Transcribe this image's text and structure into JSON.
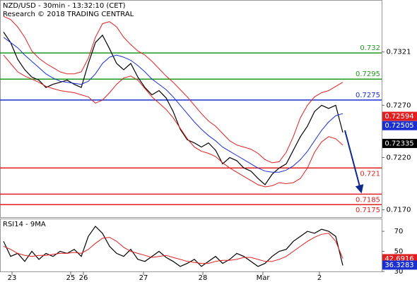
{
  "chart_data": [
    {
      "type": "line",
      "title": "NZD/USD - 30min - 13:32:10 (CET)",
      "subtitle": "Research © 2018 TRADING CENTRAL",
      "x": [
        0,
        1,
        2,
        3,
        4,
        5,
        6,
        7,
        8,
        9,
        10,
        11,
        12,
        13,
        14,
        15,
        16,
        17,
        18,
        19,
        20,
        21,
        22,
        23,
        24,
        25,
        26,
        27,
        28,
        29,
        30,
        31,
        32,
        33,
        34,
        35,
        36,
        37,
        38,
        39,
        40,
        41,
        42,
        43,
        44,
        45,
        46,
        47,
        48
      ],
      "xlim": [
        -0.5,
        53.5
      ],
      "ylim": [
        0.7163,
        0.737
      ],
      "yticks": [
        0.7321,
        {
          "value": 0.727,
          "label": "0.7270"
        },
        {
          "value": 0.722,
          "label": "0.7220"
        },
        {
          "value": 0.717,
          "label": "0.7170"
        }
      ],
      "series": [
        {
          "color": "#000000",
          "values": [
            0.734,
            0.733,
            0.7314,
            0.7304,
            0.7297,
            0.7294,
            0.7287,
            0.729,
            0.7292,
            0.7294,
            0.729,
            0.7287,
            0.731,
            0.733,
            0.7337,
            0.7324,
            0.731,
            0.7304,
            0.731,
            0.7297,
            0.7287,
            0.728,
            0.7284,
            0.7277,
            0.7264,
            0.7247,
            0.7237,
            0.7234,
            0.723,
            0.7234,
            0.7227,
            0.7214,
            0.722,
            0.7217,
            0.721,
            0.7207,
            0.72,
            0.7194,
            0.7204,
            0.721,
            0.7214,
            0.7227,
            0.724,
            0.725,
            0.7264,
            0.727,
            0.7267,
            0.727,
            0.7244
          ]
        },
        {
          "color": "#1a2fd0",
          "values": [
            0.7335,
            0.733,
            0.7325,
            0.7318,
            0.7312,
            0.7306,
            0.73,
            0.7296,
            0.7293,
            0.7292,
            0.7291,
            0.729,
            0.7293,
            0.73,
            0.731,
            0.7316,
            0.7318,
            0.7316,
            0.7313,
            0.7308,
            0.7302,
            0.7295,
            0.729,
            0.7285,
            0.7278,
            0.727,
            0.7262,
            0.7254,
            0.7247,
            0.7241,
            0.7236,
            0.723,
            0.7226,
            0.7222,
            0.7218,
            0.7214,
            0.721,
            0.7207,
            0.7206,
            0.7206,
            0.7208,
            0.7212,
            0.7218,
            0.7226,
            0.7236,
            0.7246,
            0.7254,
            0.726,
            0.7262
          ]
        },
        {
          "color": "#e02020",
          "values": [
            0.7355,
            0.7352,
            0.7345,
            0.7335,
            0.7322,
            0.7315,
            0.731,
            0.7306,
            0.7302,
            0.73,
            0.73,
            0.7302,
            0.7315,
            0.7335,
            0.7348,
            0.735,
            0.7345,
            0.7335,
            0.7328,
            0.7322,
            0.7318,
            0.7312,
            0.7305,
            0.7298,
            0.7292,
            0.7285,
            0.7278,
            0.727,
            0.7262,
            0.7255,
            0.725,
            0.7243,
            0.7236,
            0.7232,
            0.723,
            0.7228,
            0.7224,
            0.7218,
            0.7215,
            0.7216,
            0.7225,
            0.724,
            0.7258,
            0.727,
            0.7278,
            0.7282,
            0.7284,
            0.7288,
            0.7292
          ]
        },
        {
          "color": "#e02020",
          "values": [
            0.7318,
            0.731,
            0.7302,
            0.7298,
            0.7295,
            0.7292,
            0.7288,
            0.7286,
            0.7284,
            0.7283,
            0.7282,
            0.728,
            0.7278,
            0.7272,
            0.7275,
            0.7282,
            0.729,
            0.7296,
            0.7298,
            0.7294,
            0.7286,
            0.7278,
            0.7272,
            0.7266,
            0.7258,
            0.7248,
            0.7238,
            0.723,
            0.7226,
            0.7224,
            0.7221,
            0.7215,
            0.721,
            0.7206,
            0.7202,
            0.7198,
            0.7194,
            0.7192,
            0.7193,
            0.7196,
            0.7195,
            0.7196,
            0.72,
            0.721,
            0.7225,
            0.7235,
            0.724,
            0.7238,
            0.7232
          ]
        }
      ],
      "levels": [
        {
          "value": 0.732,
          "color": "#1f9a1f"
        },
        {
          "value": 0.7295,
          "color": "#1f9a1f"
        },
        {
          "value": 0.7275,
          "color": "#1a2fd0"
        },
        {
          "value": 0.721,
          "color": "#e02020"
        },
        {
          "value": 0.7185,
          "color": "#e02020"
        },
        {
          "value": 0.7175,
          "color": "#e02020"
        }
      ],
      "price_tags": [
        {
          "value": 0.72594,
          "color": "#e02020"
        },
        {
          "value": 0.72505,
          "color": "#1a2fd0"
        },
        {
          "value": 0.72335,
          "color": "#000000"
        }
      ]
    },
    {
      "type": "line",
      "title": "RSI14 - 9MA",
      "x": [
        0,
        1,
        2,
        3,
        4,
        5,
        6,
        7,
        8,
        9,
        10,
        11,
        12,
        13,
        14,
        15,
        16,
        17,
        18,
        19,
        20,
        21,
        22,
        23,
        24,
        25,
        26,
        27,
        28,
        29,
        30,
        31,
        32,
        33,
        34,
        35,
        36,
        37,
        38,
        39,
        40,
        41,
        42,
        43,
        44,
        45,
        46,
        47,
        48
      ],
      "xlim": [
        -0.5,
        53.5
      ],
      "xticks": [
        {
          "value": 1.2,
          "label": "23"
        },
        {
          "value": 9.5,
          "label": "25"
        },
        {
          "value": 11.3,
          "label": "26"
        },
        {
          "value": 19.8,
          "label": "27"
        },
        {
          "value": 28.2,
          "label": "28"
        },
        {
          "value": 36.7,
          "label": "Mar"
        },
        {
          "value": 44.7,
          "label": "2"
        }
      ],
      "ylim": [
        30,
        82
      ],
      "yticks": [
        70,
        50,
        30
      ],
      "series": [
        {
          "color": "#000000",
          "values": [
            60,
            45,
            48,
            40,
            50,
            42,
            48,
            45,
            50,
            48,
            52,
            45,
            65,
            75,
            68,
            55,
            48,
            45,
            52,
            42,
            40,
            45,
            50,
            44,
            40,
            35,
            38,
            42,
            35,
            40,
            45,
            38,
            42,
            48,
            45,
            40,
            35,
            38,
            45,
            50,
            52,
            60,
            65,
            70,
            68,
            72,
            70,
            65,
            36
          ]
        },
        {
          "color": "#e02020",
          "values": [
            55,
            52,
            48,
            46,
            45,
            46,
            46,
            47,
            48,
            48,
            49,
            48,
            52,
            58,
            63,
            64,
            60,
            54,
            50,
            48,
            46,
            44,
            45,
            46,
            44,
            42,
            40,
            39,
            38,
            38,
            40,
            41,
            41,
            42,
            44,
            44,
            42,
            40,
            40,
            42,
            45,
            50,
            55,
            60,
            64,
            67,
            68,
            60,
            43
          ]
        }
      ],
      "price_tags": [
        {
          "value": 42.6916,
          "color": "#e02020"
        },
        {
          "value": 36.3283,
          "color": "#1a2fd0"
        }
      ]
    }
  ]
}
